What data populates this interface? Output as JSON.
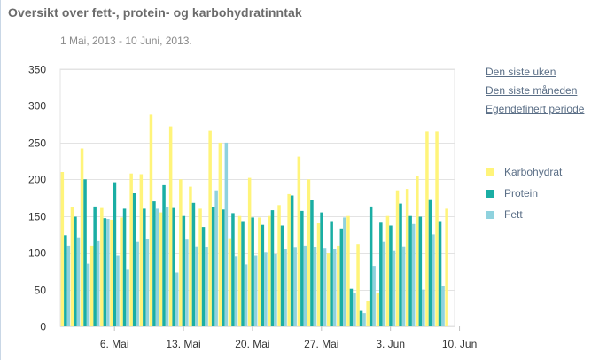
{
  "title": "Oversikt over fett-, protein- og karbohydratinntak",
  "subtitle": "1 Mai, 2013 - 10 Juni, 2013.",
  "links": [
    "Den siste uken",
    "Den siste måneden",
    "Egendefinert periode"
  ],
  "chart_data": {
    "type": "bar",
    "ylim": [
      0,
      350
    ],
    "yticks": [
      "0",
      "50",
      "100",
      "150",
      "200",
      "250",
      "300",
      "350"
    ],
    "xtick_labels": [
      {
        "label": "6. Mai",
        "day": 5
      },
      {
        "label": "13. Mai",
        "day": 12
      },
      {
        "label": "20. Mai",
        "day": 19
      },
      {
        "label": "27. Mai",
        "day": 26
      },
      {
        "label": "3. Jun",
        "day": 33
      },
      {
        "label": "10. Jun",
        "day": 40
      }
    ],
    "series": [
      {
        "name": "Karbohydrat",
        "color": "#fff47a",
        "values": [
          210,
          162,
          242,
          110,
          161,
          145,
          148,
          208,
          207,
          288,
          155,
          272,
          200,
          190,
          160,
          266,
          250,
          120,
          150,
          202,
          148,
          150,
          165,
          180,
          231,
          200,
          140,
          100,
          110,
          150,
          112,
          35,
          45,
          150,
          185,
          187,
          205,
          265,
          265,
          160
        ]
      },
      {
        "name": "Protein",
        "color": "#1aaea4",
        "values": [
          124,
          149,
          200,
          163,
          147,
          196,
          160,
          181,
          160,
          170,
          192,
          161,
          150,
          168,
          135,
          162,
          159,
          154,
          143,
          148,
          138,
          158,
          137,
          178,
          157,
          172,
          155,
          143,
          133,
          51,
          21,
          163,
          142,
          137,
          167,
          150,
          149,
          173,
          143,
          0
        ]
      },
      {
        "name": "Fett",
        "color": "#8fd2de",
        "values": [
          110,
          121,
          85,
          116,
          146,
          96,
          78,
          115,
          119,
          160,
          162,
          73,
          118,
          109,
          108,
          185,
          250,
          95,
          84,
          96,
          101,
          98,
          105,
          107,
          110,
          108,
          106,
          105,
          148,
          45,
          18,
          82,
          115,
          103,
          109,
          139,
          50,
          125,
          55,
          0
        ]
      }
    ]
  },
  "legend": [
    {
      "name": "Karbohydrat",
      "color": "#fff47a"
    },
    {
      "name": "Protein",
      "color": "#1aaea4"
    },
    {
      "name": "Fett",
      "color": "#8fd2de"
    }
  ]
}
